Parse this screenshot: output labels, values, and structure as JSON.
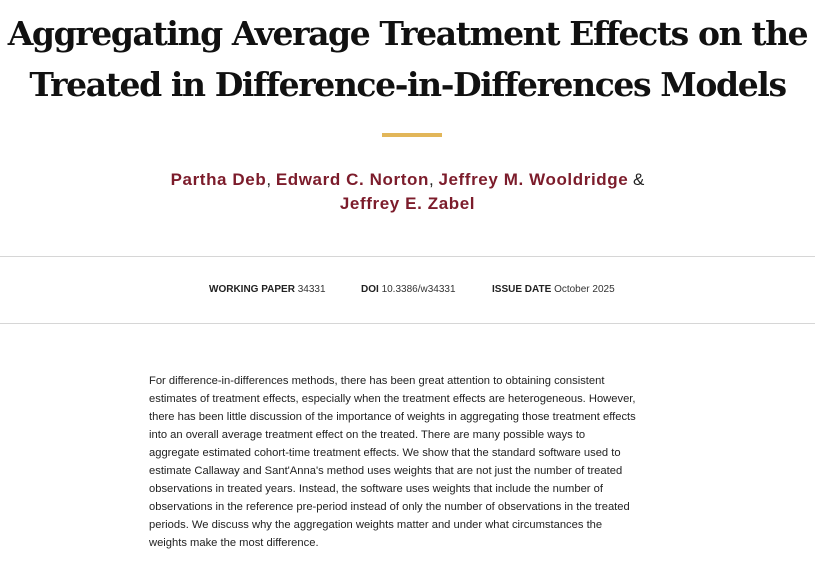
{
  "paper": {
    "title_lines": [
      "Aggregating Average Treatment Effects on the",
      "Treated in Difference-in-Differences Models"
    ],
    "authors": [
      "Partha Deb",
      "Edward C. Norton",
      "Jeffrey M. Wooldridge",
      "Jeffrey E. Zabel"
    ],
    "author_separators": [
      ",",
      ",",
      "&"
    ]
  },
  "meta": {
    "working_paper_label": "WORKING PAPER",
    "working_paper_value": "34331",
    "doi_label": "DOI",
    "doi_value": "10.3386/w34331",
    "issue_date_label": "ISSUE DATE",
    "issue_date_value": "October 2025"
  },
  "abstract_lines": [
    "For difference-in-differences methods, there has been great attention to obtaining consistent",
    "estimates of treatment effects, especially when the treatment effects are heterogeneous. However,",
    "there has been little discussion of the importance of weights in aggregating those treatment effects",
    "into an overall average treatment effect on the treated. There are many possible ways to",
    "aggregate estimated cohort-time treatment effects. We show that the standard software used to",
    "estimate Callaway and Sant'Anna's method uses weights that are not just the number of treated",
    "observations in treated years. Instead, the software uses weights that include the number of",
    "observations in the reference pre-period instead of only the number of observations in the treated",
    "periods. We discuss why the aggregation weights matter and under what circumstances the",
    "weights make the most difference."
  ],
  "colors": {
    "accent_rule": "#e2b659",
    "author_link": "#7c1c2b",
    "divider": "#d6d6d6"
  }
}
